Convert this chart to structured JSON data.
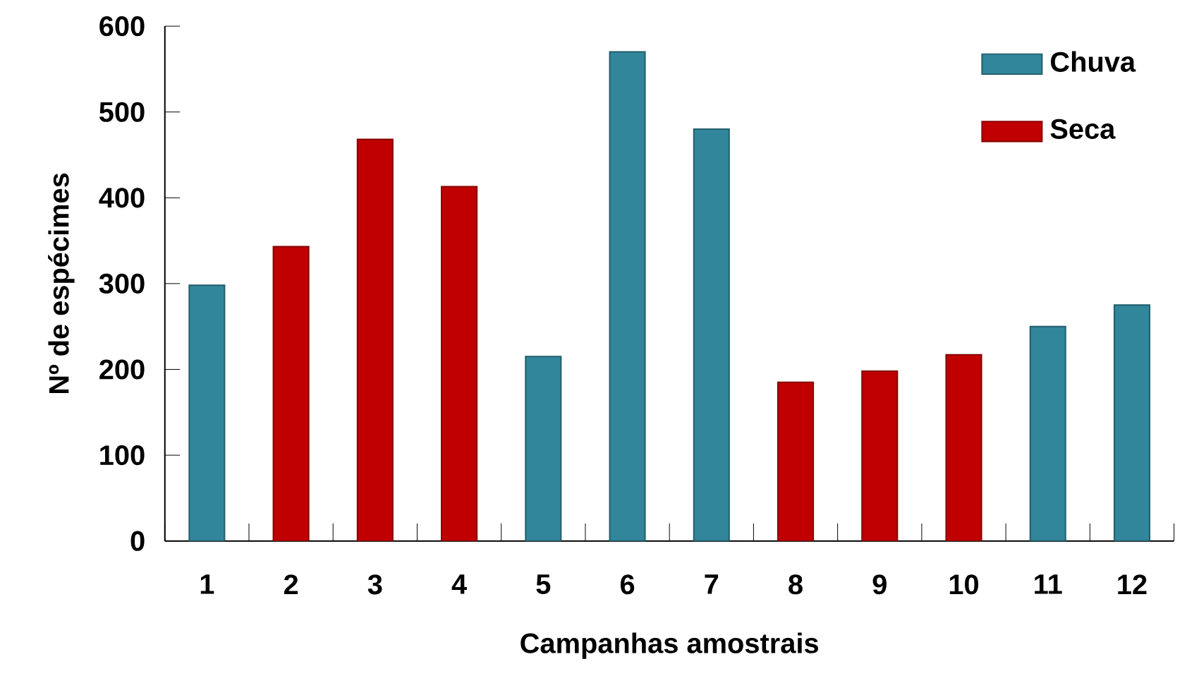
{
  "chart_data": {
    "type": "bar",
    "xlabel": "Campanhas amostrais",
    "ylabel": "Nº  de  espécimes",
    "categories": [
      "1",
      "2",
      "3",
      "4",
      "5",
      "6",
      "7",
      "8",
      "9",
      "10",
      "11",
      "12"
    ],
    "series": [
      {
        "name": "Chuva",
        "color": "#31869b",
        "values": [
          298,
          null,
          null,
          null,
          215,
          570,
          480,
          null,
          null,
          null,
          250,
          275
        ]
      },
      {
        "name": "Seca",
        "color": "#c00000",
        "values": [
          null,
          343,
          468,
          413,
          null,
          null,
          null,
          185,
          198,
          217,
          null,
          null
        ]
      }
    ],
    "ylim": [
      0,
      600
    ],
    "yticks": [
      0,
      100,
      200,
      300,
      400,
      500,
      600
    ],
    "legend": "top right"
  }
}
